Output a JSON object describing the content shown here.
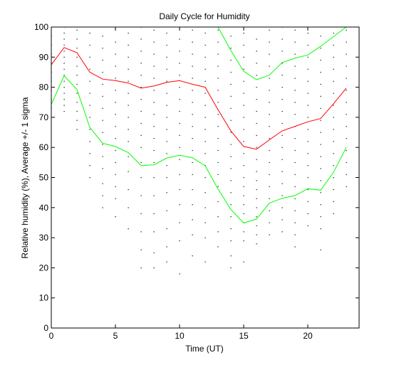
{
  "chart_data": {
    "type": "line",
    "title": "Daily Cycle for Humidity",
    "xlabel": "Time (UT)",
    "ylabel": "Relative humidity (%), Average +/- 1 sigma",
    "xlim": [
      0,
      24
    ],
    "ylim": [
      0,
      100
    ],
    "xticks": [
      0,
      5,
      10,
      15,
      20
    ],
    "yticks": [
      0,
      10,
      20,
      30,
      40,
      50,
      60,
      70,
      80,
      90,
      100
    ],
    "grid": false,
    "colors": {
      "average": "#ff0000",
      "sigma": "#00ff00",
      "points": "#000000"
    },
    "x": [
      0,
      1,
      2,
      3,
      4,
      5,
      6,
      7,
      8,
      9,
      10,
      11,
      12,
      13,
      14,
      15,
      16,
      17,
      18,
      19,
      20,
      21,
      22,
      23
    ],
    "series": [
      {
        "role": "average",
        "values": [
          87.5,
          93.2,
          91.5,
          85.0,
          82.7,
          82.2,
          81.4,
          79.7,
          80.4,
          81.6,
          82.2,
          81.0,
          80.0,
          72.5,
          65.5,
          60.3,
          59.4,
          62.5,
          65.5,
          67.0,
          68.5,
          69.6,
          74.5,
          79.7
        ]
      },
      {
        "role": "upper",
        "values": [
          null,
          null,
          null,
          null,
          null,
          null,
          null,
          null,
          null,
          null,
          null,
          null,
          null,
          100.0,
          92.2,
          85.3,
          82.5,
          84.0,
          88.2,
          89.7,
          90.7,
          93.6,
          96.8,
          100.0
        ]
      },
      {
        "role": "lower",
        "values": [
          74.3,
          83.8,
          79.3,
          66.7,
          61.4,
          60.3,
          58.3,
          54.0,
          54.2,
          56.5,
          57.4,
          56.6,
          53.9,
          46.2,
          39.4,
          34.9,
          36.2,
          41.5,
          43.1,
          44.0,
          46.3,
          45.8,
          51.7,
          60.0
        ]
      }
    ],
    "scatter": {
      "0": [
        100,
        97,
        94,
        91,
        88,
        85,
        82,
        79,
        76,
        73
      ],
      "1": [
        100,
        98,
        96,
        94,
        92,
        90,
        88,
        86,
        84,
        82,
        80,
        78,
        76,
        74,
        72
      ],
      "2": [
        99,
        96,
        93,
        90,
        87,
        84,
        81,
        78,
        75,
        72,
        69,
        66
      ],
      "3": [
        98,
        94,
        90,
        86,
        82,
        78,
        74,
        70,
        66,
        62,
        58,
        54,
        50
      ],
      "4": [
        97,
        93,
        89,
        85,
        81,
        77,
        73,
        69,
        65,
        61,
        57,
        53,
        48,
        44,
        40
      ],
      "5": [
        99,
        95,
        91,
        87,
        83,
        79,
        75,
        71,
        67,
        63,
        59,
        55,
        51,
        47,
        43,
        37
      ],
      "6": [
        98,
        94,
        90,
        86,
        82,
        78,
        74,
        70,
        66,
        62,
        57,
        52,
        46,
        40,
        33
      ],
      "7": [
        100,
        96,
        92,
        88,
        84,
        80,
        76,
        72,
        68,
        64,
        60,
        55,
        50,
        44,
        38,
        32,
        26,
        20
      ],
      "8": [
        99,
        95,
        91,
        87,
        83,
        79,
        75,
        71,
        67,
        63,
        59,
        55,
        50,
        44,
        38,
        32,
        25,
        20
      ],
      "9": [
        98,
        94,
        90,
        86,
        82,
        78,
        74,
        70,
        66,
        62,
        58,
        54,
        50,
        45,
        39,
        33,
        27,
        22
      ],
      "10": [
        100,
        96,
        92,
        88,
        84,
        80,
        76,
        72,
        68,
        64,
        60,
        56,
        51,
        46,
        41,
        35,
        29,
        18
      ],
      "11": [
        99,
        95,
        91,
        87,
        83,
        79,
        75,
        71,
        67,
        63,
        59,
        55,
        51,
        46,
        41,
        36,
        31,
        24
      ],
      "12": [
        98,
        94,
        90,
        86,
        82,
        78,
        74,
        70,
        66,
        62,
        58,
        54,
        50,
        45,
        40,
        35,
        30,
        22
      ],
      "13": [
        99,
        95,
        91,
        87,
        83,
        79,
        75,
        71,
        67,
        63,
        59,
        55,
        51,
        47,
        42,
        37,
        32,
        27
      ],
      "14": [
        97,
        93,
        89,
        85,
        81,
        77,
        73,
        69,
        65,
        61,
        57,
        53,
        49,
        45,
        41,
        37,
        33,
        29,
        24,
        20
      ],
      "15": [
        98,
        94,
        90,
        86,
        82,
        78,
        74,
        70,
        66,
        62,
        58,
        54,
        50,
        47,
        44,
        41,
        38,
        35,
        32,
        29,
        22
      ],
      "16": [
        96,
        92,
        88,
        84,
        80,
        76,
        72,
        68,
        64,
        60,
        56,
        52,
        49,
        46,
        43,
        40,
        37,
        34,
        31,
        28
      ],
      "17": [
        99,
        95,
        91,
        87,
        83,
        79,
        75,
        71,
        67,
        63,
        59,
        55,
        51,
        47,
        43,
        39,
        35,
        31
      ],
      "18": [
        100,
        96,
        92,
        88,
        84,
        80,
        76,
        72,
        68,
        64,
        60,
        56,
        52,
        48,
        44,
        40,
        36,
        32
      ],
      "19": [
        99,
        95,
        91,
        87,
        83,
        79,
        75,
        71,
        67,
        63,
        59,
        55,
        51,
        47,
        43,
        39,
        35,
        31,
        27
      ],
      "20": [
        98,
        94,
        90,
        86,
        82,
        78,
        74,
        70,
        66,
        62,
        58,
        54,
        50,
        46,
        42,
        38,
        34
      ],
      "21": [
        97,
        93,
        89,
        85,
        81,
        77,
        73,
        69,
        65,
        61,
        57,
        53,
        49,
        45,
        41,
        37,
        33,
        26
      ],
      "22": [
        98,
        94,
        90,
        86,
        82,
        78,
        74,
        70,
        66,
        62,
        58,
        54,
        50,
        46,
        42,
        38
      ],
      "23": [
        99,
        95,
        91,
        87,
        83,
        79,
        75,
        71,
        67,
        63,
        59,
        55,
        51,
        47
      ]
    }
  }
}
